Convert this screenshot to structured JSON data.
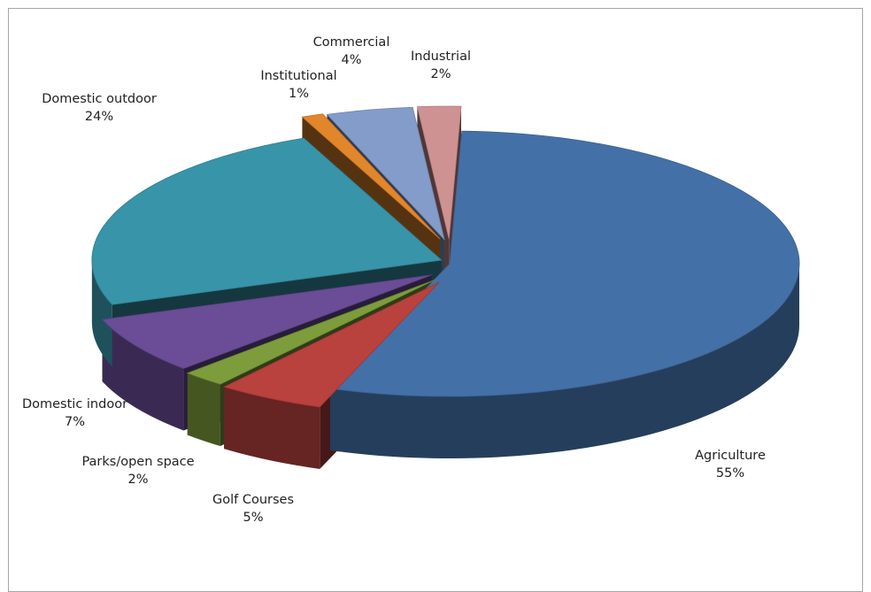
{
  "chart_data": {
    "type": "pie",
    "title": "",
    "labels": [
      "Agriculture",
      "Golf Courses",
      "Parks/open space",
      "Domestic indoor",
      "Domestic outdoor",
      "Institutional",
      "Commercial",
      "Industrial"
    ],
    "values": [
      55,
      5,
      2,
      7,
      24,
      1,
      4,
      2
    ],
    "value_labels": [
      "55%",
      "5%",
      "2%",
      "7%",
      "24%",
      "1%",
      "4%",
      "2%"
    ],
    "colors": [
      "#4470a8",
      "#b9413e",
      "#7d9c3c",
      "#6a4c97",
      "#3894a8",
      "#e2862b",
      "#839cc9",
      "#cf9292"
    ],
    "style": "3d-exploded",
    "legend": "none"
  }
}
